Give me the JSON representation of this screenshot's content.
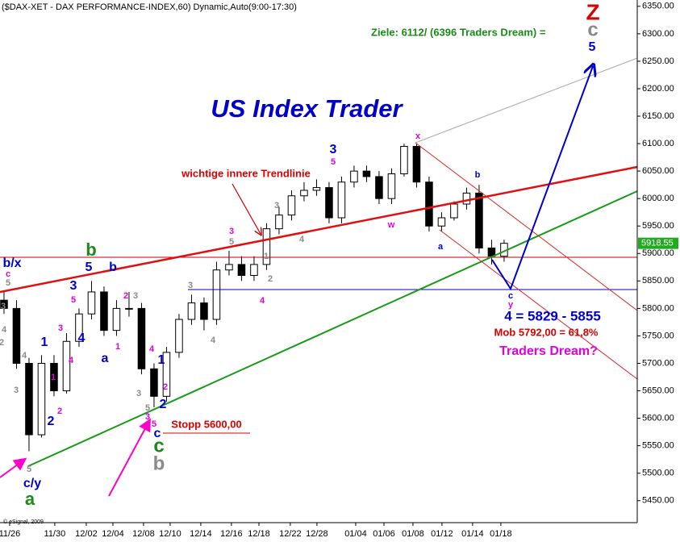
{
  "chart_data": {
    "type": "candlestick",
    "title": "($DAX-XET - DAX PERFORMANCE-INDEX,60) Dynamic,Auto(9:00-17:30)",
    "open": [
      5815,
      5800,
      5700,
      5570,
      5700,
      5650,
      5740,
      5790,
      5830,
      5760,
      5800,
      5800,
      5690,
      5640,
      5720,
      5780,
      5810,
      5780,
      5870,
      5880,
      5860,
      5880,
      5945,
      5970,
      6005,
      6015,
      6020,
      5965,
      6030,
      6050,
      6040,
      6000,
      6045,
      6095,
      6030,
      5950,
      5965,
      5990,
      6010,
      5910,
      5895
    ],
    "high": [
      5830,
      5815,
      5710,
      5715,
      5715,
      5755,
      5800,
      5850,
      5840,
      5815,
      5830,
      5810,
      5700,
      5730,
      5790,
      5825,
      5820,
      5885,
      5905,
      5895,
      5895,
      5955,
      5985,
      6015,
      6030,
      6035,
      6030,
      6040,
      6060,
      6060,
      6050,
      6055,
      6100,
      6100,
      6040,
      5975,
      5995,
      6020,
      6025,
      5925,
      5925
    ],
    "low": [
      5790,
      5690,
      5540,
      5565,
      5640,
      5645,
      5730,
      5780,
      5750,
      5750,
      5785,
      5680,
      5620,
      5630,
      5710,
      5770,
      5760,
      5770,
      5860,
      5850,
      5850,
      5870,
      5935,
      5960,
      5995,
      6005,
      5955,
      5955,
      6020,
      6030,
      5990,
      5990,
      6040,
      6020,
      5940,
      5940,
      5960,
      5980,
      5900,
      5880,
      5885
    ],
    "close": [
      5800,
      5700,
      5570,
      5700,
      5650,
      5740,
      5790,
      5830,
      5760,
      5800,
      5800,
      5690,
      5640,
      5720,
      5780,
      5810,
      5780,
      5870,
      5880,
      5860,
      5880,
      5945,
      5970,
      6005,
      6015,
      6020,
      5965,
      6030,
      6050,
      6040,
      6000,
      6045,
      6095,
      6030,
      5950,
      5965,
      5990,
      6010,
      5910,
      5895,
      5918.55
    ],
    "xlim": [
      -0.32,
      50.65
    ],
    "xticks": [
      {
        "value": 0.45,
        "label": "11/26"
      },
      {
        "value": 4.06,
        "label": "11/30"
      },
      {
        "value": 6.58,
        "label": "12/02"
      },
      {
        "value": 8.71,
        "label": "12/04"
      },
      {
        "value": 11.16,
        "label": "12/08"
      },
      {
        "value": 13.29,
        "label": "12/10"
      },
      {
        "value": 15.74,
        "label": "12/14"
      },
      {
        "value": 18.19,
        "label": "12/16"
      },
      {
        "value": 20.39,
        "label": "12/18"
      },
      {
        "value": 22.9,
        "label": "12/22"
      },
      {
        "value": 25.03,
        "label": "12/28"
      },
      {
        "value": 28.13,
        "label": "01/04"
      },
      {
        "value": 30.39,
        "label": "01/06"
      },
      {
        "value": 32.71,
        "label": "01/08"
      },
      {
        "value": 35.03,
        "label": "01/12"
      },
      {
        "value": 37.48,
        "label": "01/14"
      },
      {
        "value": 39.74,
        "label": "01/18"
      }
    ],
    "ylim": [
      5410,
      6360
    ],
    "yticks": [
      {
        "value": 5450,
        "label": "5450.00"
      },
      {
        "value": 5500,
        "label": "5500.00"
      },
      {
        "value": 5550,
        "label": "5550.00"
      },
      {
        "value": 5600,
        "label": "5600.00"
      },
      {
        "value": 5650,
        "label": "5650.00"
      },
      {
        "value": 5700,
        "label": "5700.00"
      },
      {
        "value": 5750,
        "label": "5750.00"
      },
      {
        "value": 5800,
        "label": "5800.00"
      },
      {
        "value": 5850,
        "label": "5850.00"
      },
      {
        "value": 5900,
        "label": "5900.00"
      },
      {
        "value": 5950,
        "label": "5950.00"
      },
      {
        "value": 6000,
        "label": "6000.00"
      },
      {
        "value": 6050,
        "label": "6050.00"
      },
      {
        "value": 6100,
        "label": "6100.00"
      },
      {
        "value": 6150,
        "label": "6150.00"
      },
      {
        "value": 6200,
        "label": "6200.00"
      },
      {
        "value": 6250,
        "label": "6250.00"
      },
      {
        "value": 6300,
        "label": "6300.00"
      },
      {
        "value": 6350,
        "label": "6350.00"
      }
    ],
    "up_color": "#ffffff",
    "down_color": "#000000"
  },
  "annotations": [
    "Z",
    "Ziele: 6112/ (6396 Traders Dream) =",
    "c",
    "5",
    "US Index Trader",
    "3",
    "5",
    "x",
    "wichtige innere Trendlinie",
    "b",
    "3",
    "w",
    "4",
    "a",
    "3",
    "5",
    "1",
    "2",
    "4",
    "b",
    "5",
    "b",
    "3",
    "5",
    "4",
    "2",
    "3",
    "3",
    "4",
    "1",
    "1",
    "2",
    "2",
    "a",
    "1",
    "4",
    "1",
    "2",
    "3",
    "2",
    "5",
    "3",
    "4",
    "3",
    "5",
    "c",
    "c",
    "b",
    "Stopp 5600,00",
    "c/y",
    "a",
    "5",
    "4",
    "3",
    "2",
    "b/x",
    "c",
    "5",
    "3",
    "4",
    "c",
    "y",
    "4 = 5829 - 5855",
    "Mob 5792,00 = 61,8%",
    "Traders Dream?",
    "© eSignal, 2009"
  ]
}
